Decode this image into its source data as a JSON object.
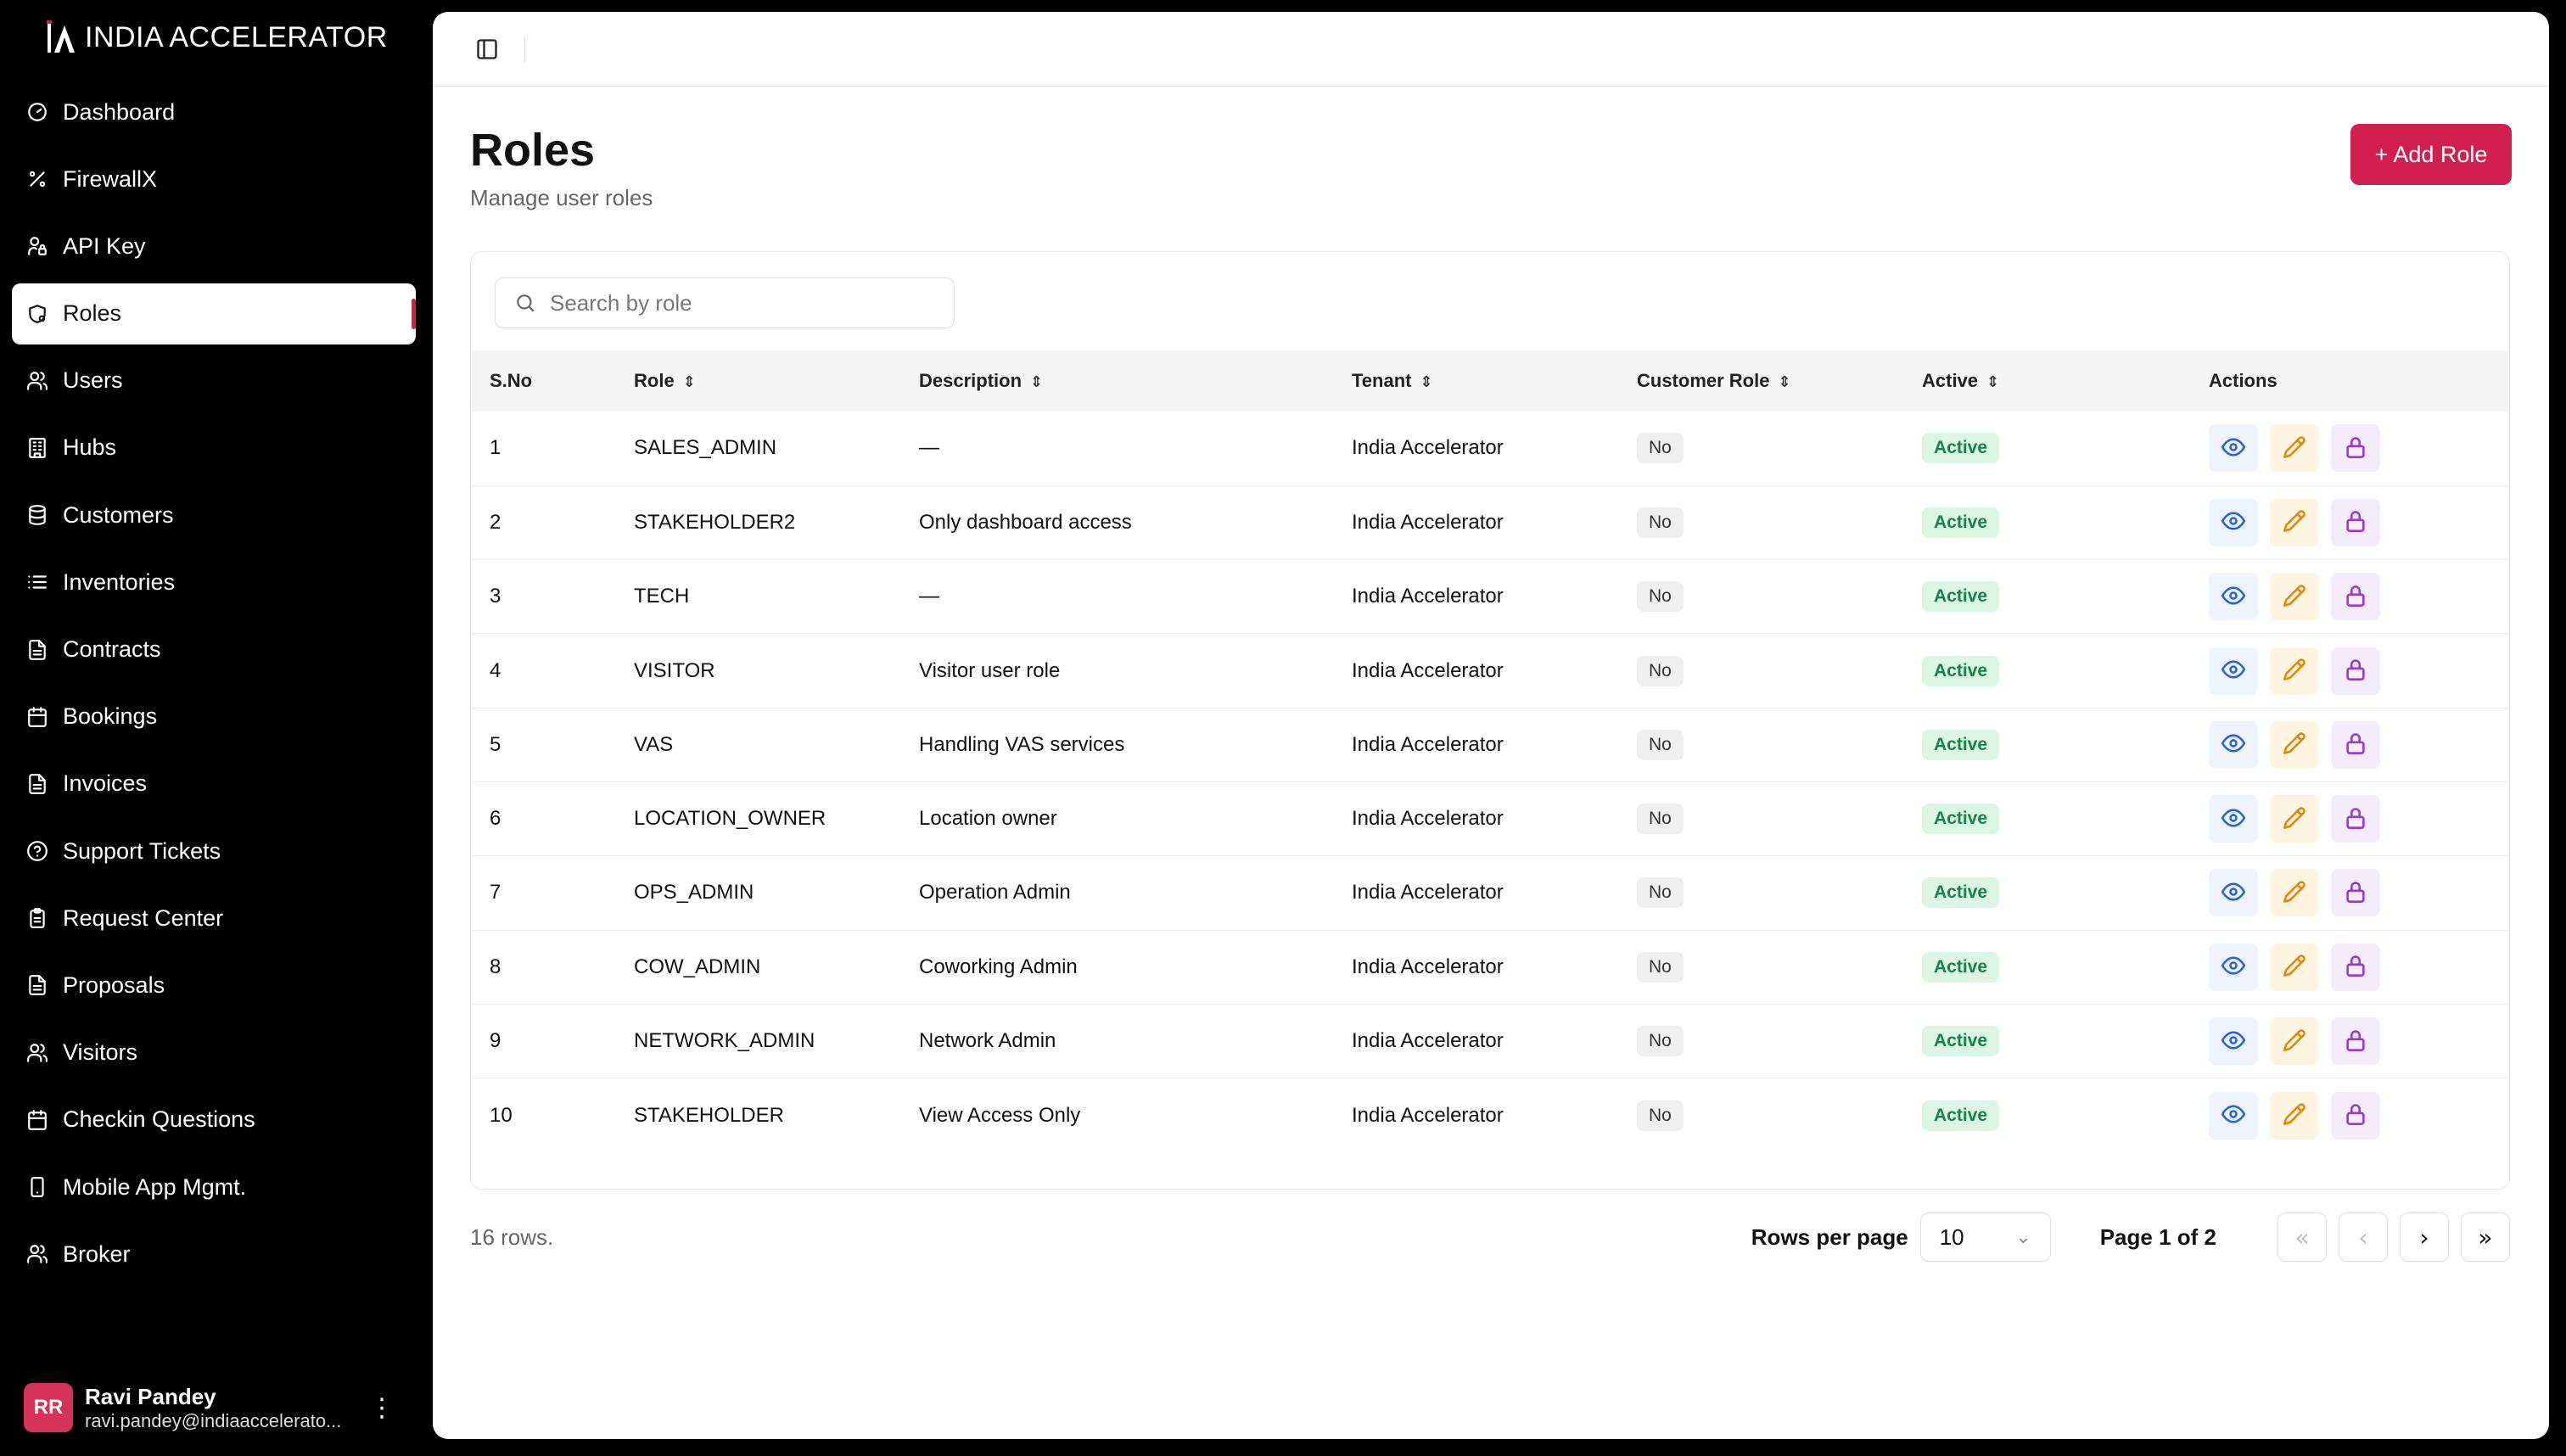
{
  "brand": {
    "name": "INDIA ACCELERATOR",
    "accent": "#d11f4f"
  },
  "sidebar": {
    "items": [
      {
        "label": "Dashboard",
        "icon": "gauge-icon"
      },
      {
        "label": "FirewallX",
        "icon": "percent-icon"
      },
      {
        "label": "API Key",
        "icon": "user-lock-icon"
      },
      {
        "label": "Roles",
        "icon": "shield-icon",
        "active": true
      },
      {
        "label": "Users",
        "icon": "users-icon"
      },
      {
        "label": "Hubs",
        "icon": "building-icon"
      },
      {
        "label": "Customers",
        "icon": "database-icon"
      },
      {
        "label": "Inventories",
        "icon": "list-icon"
      },
      {
        "label": "Contracts",
        "icon": "file-icon"
      },
      {
        "label": "Bookings",
        "icon": "calendar-icon"
      },
      {
        "label": "Invoices",
        "icon": "file-icon"
      },
      {
        "label": "Support Tickets",
        "icon": "help-circle-icon"
      },
      {
        "label": "Request Center",
        "icon": "clipboard-icon"
      },
      {
        "label": "Proposals",
        "icon": "file-icon"
      },
      {
        "label": "Visitors",
        "icon": "users-icon"
      },
      {
        "label": "Checkin Questions",
        "icon": "calendar-icon"
      },
      {
        "label": "Mobile App Mgmt.",
        "icon": "smartphone-icon"
      },
      {
        "label": "Broker",
        "icon": "users-icon"
      }
    ]
  },
  "user": {
    "initials": "RR",
    "name": "Ravi Pandey",
    "email": "ravi.pandey@indiaaccelerato..."
  },
  "page": {
    "title": "Roles",
    "subtitle": "Manage user roles",
    "add_label": "+ Add Role"
  },
  "search": {
    "placeholder": "Search by role",
    "value": ""
  },
  "table": {
    "columns": [
      "S.No",
      "Role",
      "Description",
      "Tenant",
      "Customer Role",
      "Active",
      "Actions"
    ],
    "rows": [
      {
        "sno": "1",
        "role": "SALES_ADMIN",
        "description": "—",
        "tenant": "India Accelerator",
        "customer_role": "No",
        "active": "Active"
      },
      {
        "sno": "2",
        "role": "STAKEHOLDER2",
        "description": "Only dashboard access",
        "tenant": "India Accelerator",
        "customer_role": "No",
        "active": "Active"
      },
      {
        "sno": "3",
        "role": "TECH",
        "description": "—",
        "tenant": "India Accelerator",
        "customer_role": "No",
        "active": "Active"
      },
      {
        "sno": "4",
        "role": "VISITOR",
        "description": "Visitor user role",
        "tenant": "India Accelerator",
        "customer_role": "No",
        "active": "Active"
      },
      {
        "sno": "5",
        "role": "VAS",
        "description": "Handling VAS services",
        "tenant": "India Accelerator",
        "customer_role": "No",
        "active": "Active"
      },
      {
        "sno": "6",
        "role": "LOCATION_OWNER",
        "description": "Location owner",
        "tenant": "India Accelerator",
        "customer_role": "No",
        "active": "Active"
      },
      {
        "sno": "7",
        "role": "OPS_ADMIN",
        "description": "Operation Admin",
        "tenant": "India Accelerator",
        "customer_role": "No",
        "active": "Active"
      },
      {
        "sno": "8",
        "role": "COW_ADMIN",
        "description": "Coworking Admin",
        "tenant": "India Accelerator",
        "customer_role": "No",
        "active": "Active"
      },
      {
        "sno": "9",
        "role": "NETWORK_ADMIN",
        "description": "Network Admin",
        "tenant": "India Accelerator",
        "customer_role": "No",
        "active": "Active"
      },
      {
        "sno": "10",
        "role": "STAKEHOLDER",
        "description": "View Access Only",
        "tenant": "India Accelerator",
        "customer_role": "No",
        "active": "Active"
      }
    ]
  },
  "footer": {
    "row_count": "16 rows.",
    "rows_per_page_label": "Rows per page",
    "rows_per_page_value": "10",
    "page_info": "Page 1 of 2"
  }
}
